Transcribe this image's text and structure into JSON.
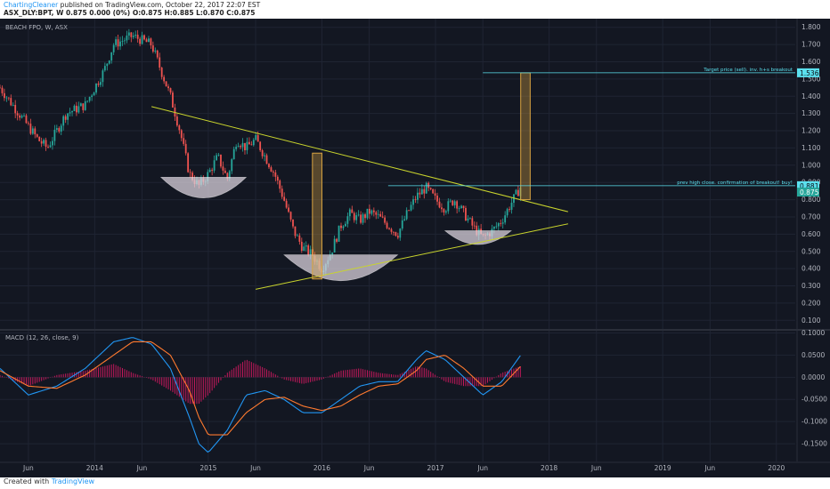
{
  "header": {
    "author": "ChartingCleaner",
    "published_on": "published on TradingView.com, October 22, 2017 22:07 EST",
    "symbol_line": "ASX_DLY:BPT, W  0.875  0.000 (0%)  O:0.875 H:0.885 L:0.870 C:0.875"
  },
  "footer": {
    "created_with": "Created with",
    "brand": "TradingView"
  },
  "colors": {
    "background": "#131722",
    "grid": "#1f2433",
    "candle_up": "#26a69a",
    "candle_down": "#ef5350",
    "trendline": "#c9d42d",
    "bowl": "#d9d2dc",
    "target_box": "#d9a441",
    "macd_line": "#2196f3",
    "signal_line": "#ff7a2f",
    "histogram": "#c2185b",
    "label_cyan": "#5be0ee"
  },
  "chart_data": [
    {
      "type": "candlestick",
      "title": "BEACH FPO, W, ASX",
      "y_axis_side": "right",
      "ylim": [
        0.05,
        1.85
      ],
      "y_ticks": [
        "1.800",
        "1.700",
        "1.600",
        "1.500",
        "1.400",
        "1.300",
        "1.200",
        "1.100",
        "1.000",
        "0.900",
        "0.800",
        "0.700",
        "0.600",
        "0.500",
        "0.400",
        "0.300",
        "0.200",
        "0.100"
      ],
      "x_ticks": [
        "Jun",
        "2014",
        "Jun",
        "2015",
        "Jun",
        "2016",
        "Jun",
        "2017",
        "Jun",
        "2018",
        "Jun",
        "2019",
        "Jun",
        "2020"
      ],
      "x_tick_dates": [
        "2013-06",
        "2014-01",
        "2014-06",
        "2015-01",
        "2015-06",
        "2016-01",
        "2016-06",
        "2017-01",
        "2017-06",
        "2018-01",
        "2018-06",
        "2019-01",
        "2019-06",
        "2020-01"
      ],
      "x_range": [
        "2013-03",
        "2020-03"
      ],
      "price_anchors": [
        {
          "date": "2013-03",
          "price": 1.45
        },
        {
          "date": "2013-05",
          "price": 1.3
        },
        {
          "date": "2013-07",
          "price": 1.15
        },
        {
          "date": "2013-08",
          "price": 1.1
        },
        {
          "date": "2013-10",
          "price": 1.3
        },
        {
          "date": "2013-12",
          "price": 1.35
        },
        {
          "date": "2014-02",
          "price": 1.55
        },
        {
          "date": "2014-03",
          "price": 1.7
        },
        {
          "date": "2014-05",
          "price": 1.75
        },
        {
          "date": "2014-07",
          "price": 1.7
        },
        {
          "date": "2014-08",
          "price": 1.55
        },
        {
          "date": "2014-09",
          "price": 1.4
        },
        {
          "date": "2014-10",
          "price": 1.2
        },
        {
          "date": "2014-11",
          "price": 0.95
        },
        {
          "date": "2014-12",
          "price": 0.88
        },
        {
          "date": "2015-01",
          "price": 0.95
        },
        {
          "date": "2015-02",
          "price": 1.05
        },
        {
          "date": "2015-03",
          "price": 0.92
        },
        {
          "date": "2015-04",
          "price": 1.15
        },
        {
          "date": "2015-05",
          "price": 1.1
        },
        {
          "date": "2015-06",
          "price": 1.15
        },
        {
          "date": "2015-07",
          "price": 1.05
        },
        {
          "date": "2015-08",
          "price": 0.95
        },
        {
          "date": "2015-09",
          "price": 0.8
        },
        {
          "date": "2015-10",
          "price": 0.62
        },
        {
          "date": "2015-11",
          "price": 0.52
        },
        {
          "date": "2015-12",
          "price": 0.48
        },
        {
          "date": "2016-01",
          "price": 0.4
        },
        {
          "date": "2016-02",
          "price": 0.5
        },
        {
          "date": "2016-03",
          "price": 0.65
        },
        {
          "date": "2016-04",
          "price": 0.72
        },
        {
          "date": "2016-05",
          "price": 0.68
        },
        {
          "date": "2016-06",
          "price": 0.73
        },
        {
          "date": "2016-07",
          "price": 0.7
        },
        {
          "date": "2016-08",
          "price": 0.65
        },
        {
          "date": "2016-09",
          "price": 0.6
        },
        {
          "date": "2016-10",
          "price": 0.72
        },
        {
          "date": "2016-11",
          "price": 0.82
        },
        {
          "date": "2016-12",
          "price": 0.87
        },
        {
          "date": "2017-01",
          "price": 0.8
        },
        {
          "date": "2017-02",
          "price": 0.75
        },
        {
          "date": "2017-03",
          "price": 0.8
        },
        {
          "date": "2017-04",
          "price": 0.72
        },
        {
          "date": "2017-05",
          "price": 0.64
        },
        {
          "date": "2017-06",
          "price": 0.58
        },
        {
          "date": "2017-07",
          "price": 0.62
        },
        {
          "date": "2017-08",
          "price": 0.68
        },
        {
          "date": "2017-09",
          "price": 0.78
        },
        {
          "date": "2017-10",
          "price": 0.875
        }
      ],
      "trendlines": [
        {
          "from": {
            "date": "2014-07",
            "price": 1.34
          },
          "to": {
            "date": "2018-03",
            "price": 0.73
          }
        },
        {
          "from": {
            "date": "2015-06",
            "price": 0.28
          },
          "to": {
            "date": "2018-03",
            "price": 0.66
          }
        }
      ],
      "bowls": [
        {
          "left": {
            "date": "2014-08",
            "price": 0.93
          },
          "right": {
            "date": "2015-05",
            "price": 0.93
          },
          "bottom": 0.81
        },
        {
          "left": {
            "date": "2015-09",
            "price": 0.48
          },
          "right": {
            "date": "2016-09",
            "price": 0.48
          },
          "bottom": 0.33
        },
        {
          "left": {
            "date": "2017-02",
            "price": 0.62
          },
          "right": {
            "date": "2017-09",
            "price": 0.62
          },
          "bottom": 0.54
        }
      ],
      "target_boxes": [
        {
          "from_date": "2015-12",
          "to_date": "2016-01",
          "low": 0.34,
          "high": 1.07
        },
        {
          "from_date": "2017-10",
          "to_date": "2017-11",
          "low": 0.8,
          "high": 1.536
        }
      ],
      "horizontal_levels": [
        {
          "price": 1.536,
          "from_date": "2017-06",
          "label": "Target price (sell). inv. h+s breakout",
          "value_label": "1.536"
        },
        {
          "price": 0.881,
          "from_date": "2016-08",
          "label": "prev high close. confirmation of breakout! buy!",
          "value_label": "0.881"
        }
      ],
      "last_price_label": "0.875"
    },
    {
      "type": "macd",
      "title": "MACD (12, 26, close, 9)",
      "ylim": [
        -0.19,
        0.105
      ],
      "y_ticks": [
        "0.1000",
        "0.0500",
        "0.0000",
        "-0.0500",
        "-0.1000",
        "-0.1500"
      ],
      "macd_anchors": [
        {
          "date": "2013-03",
          "value": 0.02
        },
        {
          "date": "2013-06",
          "value": -0.04
        },
        {
          "date": "2013-09",
          "value": -0.02
        },
        {
          "date": "2013-12",
          "value": 0.02
        },
        {
          "date": "2014-03",
          "value": 0.08
        },
        {
          "date": "2014-05",
          "value": 0.09
        },
        {
          "date": "2014-07",
          "value": 0.075
        },
        {
          "date": "2014-09",
          "value": 0.02
        },
        {
          "date": "2014-11",
          "value": -0.09
        },
        {
          "date": "2014-12",
          "value": -0.15
        },
        {
          "date": "2015-01",
          "value": -0.17
        },
        {
          "date": "2015-03",
          "value": -0.12
        },
        {
          "date": "2015-05",
          "value": -0.04
        },
        {
          "date": "2015-07",
          "value": -0.03
        },
        {
          "date": "2015-09",
          "value": -0.05
        },
        {
          "date": "2015-11",
          "value": -0.08
        },
        {
          "date": "2016-01",
          "value": -0.08
        },
        {
          "date": "2016-03",
          "value": -0.05
        },
        {
          "date": "2016-05",
          "value": -0.02
        },
        {
          "date": "2016-07",
          "value": -0.01
        },
        {
          "date": "2016-09",
          "value": -0.01
        },
        {
          "date": "2016-11",
          "value": 0.04
        },
        {
          "date": "2016-12",
          "value": 0.06
        },
        {
          "date": "2017-02",
          "value": 0.04
        },
        {
          "date": "2017-04",
          "value": 0.0
        },
        {
          "date": "2017-06",
          "value": -0.04
        },
        {
          "date": "2017-08",
          "value": -0.01
        },
        {
          "date": "2017-10",
          "value": 0.05
        }
      ],
      "signal_anchors": [
        {
          "date": "2013-03",
          "value": 0.015
        },
        {
          "date": "2013-06",
          "value": -0.02
        },
        {
          "date": "2013-09",
          "value": -0.025
        },
        {
          "date": "2013-12",
          "value": 0.005
        },
        {
          "date": "2014-03",
          "value": 0.05
        },
        {
          "date": "2014-05",
          "value": 0.08
        },
        {
          "date": "2014-07",
          "value": 0.08
        },
        {
          "date": "2014-09",
          "value": 0.05
        },
        {
          "date": "2014-11",
          "value": -0.03
        },
        {
          "date": "2014-12",
          "value": -0.09
        },
        {
          "date": "2015-01",
          "value": -0.13
        },
        {
          "date": "2015-03",
          "value": -0.13
        },
        {
          "date": "2015-05",
          "value": -0.08
        },
        {
          "date": "2015-07",
          "value": -0.05
        },
        {
          "date": "2015-09",
          "value": -0.045
        },
        {
          "date": "2015-11",
          "value": -0.065
        },
        {
          "date": "2016-01",
          "value": -0.075
        },
        {
          "date": "2016-03",
          "value": -0.065
        },
        {
          "date": "2016-05",
          "value": -0.04
        },
        {
          "date": "2016-07",
          "value": -0.02
        },
        {
          "date": "2016-09",
          "value": -0.015
        },
        {
          "date": "2016-11",
          "value": 0.015
        },
        {
          "date": "2016-12",
          "value": 0.04
        },
        {
          "date": "2017-02",
          "value": 0.05
        },
        {
          "date": "2017-04",
          "value": 0.02
        },
        {
          "date": "2017-06",
          "value": -0.02
        },
        {
          "date": "2017-08",
          "value": -0.02
        },
        {
          "date": "2017-10",
          "value": 0.025
        }
      ]
    }
  ]
}
